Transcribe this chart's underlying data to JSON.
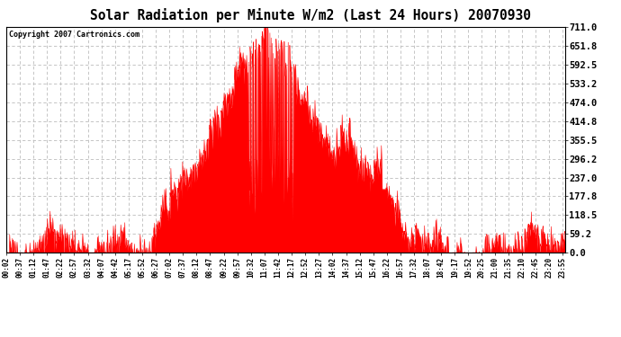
{
  "title": "Solar Radiation per Minute W/m2 (Last 24 Hours) 20070930",
  "copyright_text": "Copyright 2007 Cartronics.com",
  "fill_color": "#FF0000",
  "background_color": "#FFFFFF",
  "grid_color": "#BBBBBB",
  "title_fontsize": 11,
  "copyright_fontsize": 6.5,
  "ytick_labels": [
    "0.0",
    "59.2",
    "118.5",
    "177.8",
    "237.0",
    "296.2",
    "355.5",
    "414.8",
    "474.0",
    "533.2",
    "592.5",
    "651.8",
    "711.0"
  ],
  "ytick_values": [
    0.0,
    59.2,
    118.5,
    177.8,
    237.0,
    296.2,
    355.5,
    414.8,
    474.0,
    533.2,
    592.5,
    651.8,
    711.0
  ],
  "ymax": 711.0,
  "ymin": 0.0,
  "xtick_labels": [
    "00:02",
    "00:37",
    "01:12",
    "01:47",
    "02:22",
    "02:57",
    "03:32",
    "04:07",
    "04:42",
    "05:17",
    "05:52",
    "06:27",
    "07:02",
    "07:37",
    "08:12",
    "08:47",
    "09:22",
    "09:57",
    "10:32",
    "11:07",
    "11:42",
    "12:17",
    "12:52",
    "13:27",
    "14:02",
    "14:37",
    "15:12",
    "15:47",
    "16:22",
    "16:57",
    "17:32",
    "18:07",
    "18:42",
    "19:17",
    "19:52",
    "20:25",
    "21:00",
    "21:35",
    "22:10",
    "22:45",
    "23:20",
    "23:55"
  ],
  "num_minutes": 1440
}
